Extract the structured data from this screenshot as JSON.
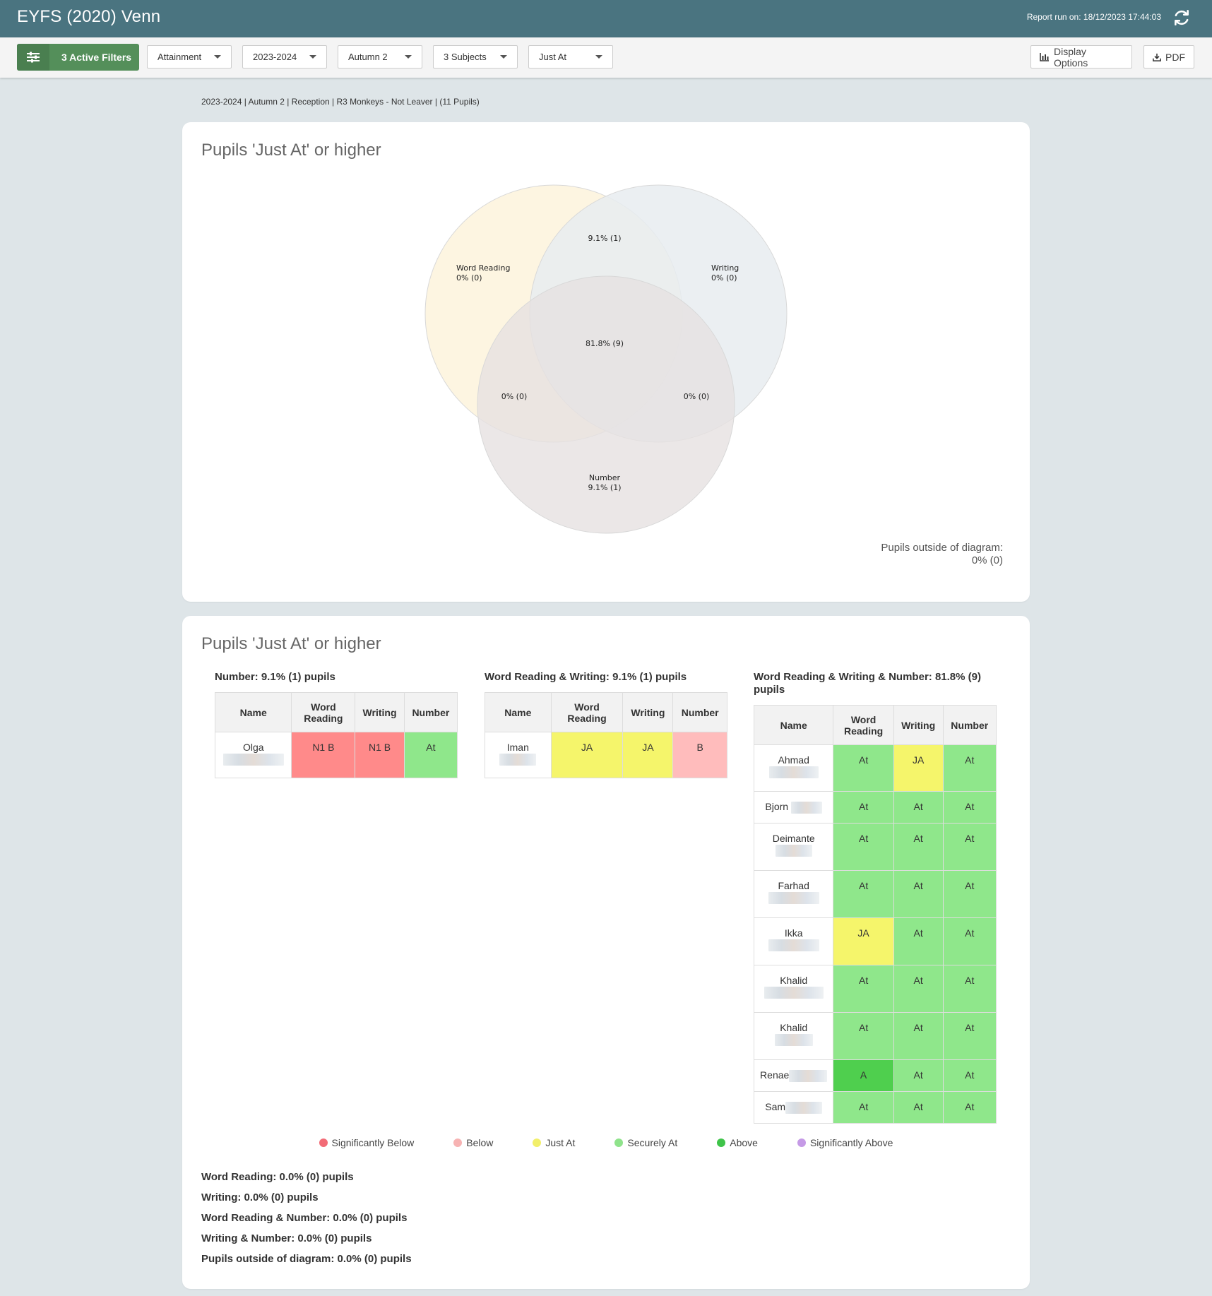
{
  "header": {
    "title": "EYFS (2020) Venn",
    "report_run": "Report run on: 18/12/2023 17:44:03"
  },
  "filterbar": {
    "active_filters_label": "3 Active Filters",
    "dropdowns": [
      "Attainment",
      "2023-2024",
      "Autumn 2",
      "3 Subjects",
      "Just At"
    ],
    "display_options_label": "Display Options",
    "pdf_label": "PDF"
  },
  "breadcrumb": "2023-2024 | Autumn 2 | Reception | R3 Monkeys - Not Leaver | (11 Pupils)",
  "venn_card": {
    "title": "Pupils 'Just At' or higher",
    "regions": {
      "wr_name": "Word Reading",
      "wr_only": "0% (0)",
      "wr_wr": "9.1% (1)",
      "w_name": "Writing",
      "w_only": "0% (0)",
      "all_three": "81.8% (9)",
      "wr_n": "0% (0)",
      "w_n": "0% (0)",
      "n_name": "Number",
      "n_only": "9.1% (1)"
    },
    "outside_label": "Pupils outside of diagram:",
    "outside_value": "0% (0)"
  },
  "colors": {
    "word_reading": "#fdf3dc",
    "writing": "#e7ecf0",
    "number": "#e6e1e1",
    "significantly_below": "#f26b76",
    "below": "#f7b3b3",
    "just_at": "#f2ef6a",
    "securely_at": "#8fe38b",
    "above": "#3fc44a",
    "significantly_above": "#c59ae6"
  },
  "tables_card": {
    "title": "Pupils 'Just At' or higher",
    "columns": [
      "Name",
      "Word Reading",
      "Writing",
      "Number"
    ],
    "tables": [
      {
        "title": "Number: 9.1% (1) pupils",
        "rows": [
          {
            "name": "Olga",
            "values": [
              "N1 B",
              "N1 B",
              "At"
            ]
          }
        ]
      },
      {
        "title": "Word Reading & Writing: 9.1% (1) pupils",
        "rows": [
          {
            "name": "Iman",
            "values": [
              "JA",
              "JA",
              "B"
            ]
          }
        ]
      },
      {
        "title": "Word Reading & Writing & Number: 81.8% (9) pupils",
        "rows": [
          {
            "name": "Ahmad",
            "values": [
              "At",
              "JA",
              "At"
            ]
          },
          {
            "name": "Bjorn",
            "values": [
              "At",
              "At",
              "At"
            ]
          },
          {
            "name": "Deimante",
            "values": [
              "At",
              "At",
              "At"
            ]
          },
          {
            "name": "Farhad",
            "values": [
              "At",
              "At",
              "At"
            ]
          },
          {
            "name": "Ikka",
            "values": [
              "JA",
              "At",
              "At"
            ]
          },
          {
            "name": "Khalid",
            "values": [
              "At",
              "At",
              "At"
            ]
          },
          {
            "name": "Khalid",
            "values": [
              "At",
              "At",
              "At"
            ]
          },
          {
            "name": "Renae",
            "values": [
              "A",
              "At",
              "At"
            ]
          },
          {
            "name": "Sam",
            "values": [
              "At",
              "At",
              "At"
            ]
          }
        ]
      }
    ],
    "legend": [
      "Significantly Below",
      "Below",
      "Just At",
      "Securely At",
      "Above",
      "Significantly Above"
    ],
    "summary": [
      "Word Reading: 0.0% (0) pupils",
      "Writing: 0.0% (0) pupils",
      "Word Reading & Number: 0.0% (0) pupils",
      "Writing & Number: 0.0% (0) pupils",
      "Pupils outside of diagram: 0.0% (0) pupils"
    ]
  }
}
